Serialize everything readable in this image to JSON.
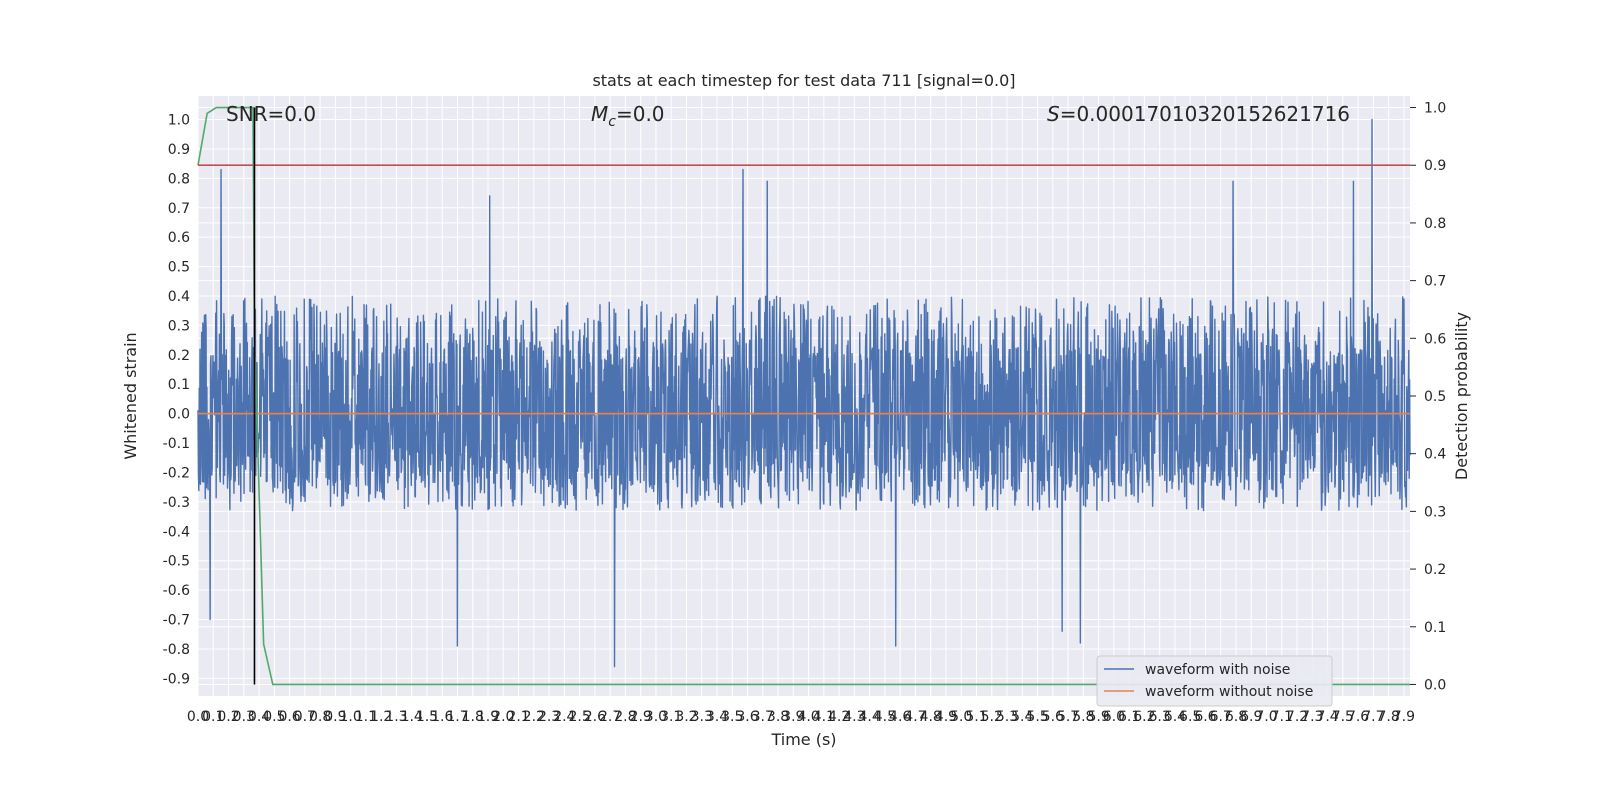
{
  "chart_data": {
    "type": "line",
    "title": "stats at each timestep for test data 711 [signal=0.0]",
    "xlabel": "Time (s)",
    "ylabel": "Whitened strain",
    "y2label": "Detection probability",
    "xlim": [
      0.0,
      7.94
    ],
    "ylim": [
      -0.96,
      1.08
    ],
    "y2lim": [
      -0.02,
      1.02
    ],
    "xticks": [
      "0.0",
      "0.1",
      "0.2",
      "0.3",
      "0.4",
      "0.5",
      "0.6",
      "0.7",
      "0.8",
      "0.9",
      "1.0",
      "1.1",
      "1.2",
      "1.3",
      "1.4",
      "1.5",
      "1.6",
      "1.7",
      "1.8",
      "1.9",
      "2.0",
      "2.1",
      "2.2",
      "2.3",
      "2.4",
      "2.5",
      "2.6",
      "2.7",
      "2.8",
      "2.9",
      "3.0",
      "3.1",
      "3.2",
      "3.3",
      "3.4",
      "3.5",
      "3.6",
      "3.7",
      "3.8",
      "3.9",
      "4.0",
      "4.1",
      "4.2",
      "4.3",
      "4.4",
      "4.5",
      "4.6",
      "4.7",
      "4.8",
      "4.9",
      "5.0",
      "5.1",
      "5.2",
      "5.3",
      "5.4",
      "5.5",
      "5.6",
      "5.7",
      "5.8",
      "5.9",
      "6.0",
      "6.1",
      "6.2",
      "6.3",
      "6.4",
      "6.5",
      "6.6",
      "6.7",
      "6.8",
      "6.9",
      "7.0",
      "7.1",
      "7.2",
      "7.3",
      "7.4",
      "7.5",
      "7.6",
      "7.7",
      "7.8",
      "7.9"
    ],
    "yticks": [
      "1.0",
      "0.9",
      "0.8",
      "0.7",
      "0.6",
      "0.5",
      "0.4",
      "0.3",
      "0.2",
      "0.1",
      "0.0",
      "-0.1",
      "-0.2",
      "-0.3",
      "-0.4",
      "-0.5",
      "-0.6",
      "-0.7",
      "-0.8",
      "-0.9"
    ],
    "y2ticks": [
      "1.0",
      "0.9",
      "0.8",
      "0.7",
      "0.6",
      "0.5",
      "0.4",
      "0.3",
      "0.2",
      "0.1",
      "0.0"
    ],
    "annotations": {
      "snr": "SNR=0.0",
      "mc_symbol": "M",
      "mc_sub": "c",
      "mc_value": "=0.0",
      "s_symbol": "S",
      "s_value": "=0.00017010320152621716"
    },
    "series": [
      {
        "name": "waveform with noise",
        "color": "#4c72b0",
        "x_range": [
          0.0,
          7.94
        ],
        "envelope_typical": [
          -0.33,
          0.4
        ],
        "peaks": [
          {
            "x": 0.15,
            "y": 0.83
          },
          {
            "x": 1.91,
            "y": 0.74
          },
          {
            "x": 3.57,
            "y": 0.83
          },
          {
            "x": 3.73,
            "y": 0.79
          },
          {
            "x": 6.78,
            "y": 0.79
          },
          {
            "x": 7.57,
            "y": 0.79
          },
          {
            "x": 7.69,
            "y": 1.0
          },
          {
            "x": 0.08,
            "y": -0.7
          },
          {
            "x": 1.7,
            "y": -0.79
          },
          {
            "x": 2.73,
            "y": -0.86
          },
          {
            "x": 4.57,
            "y": -0.79
          },
          {
            "x": 5.78,
            "y": -0.78
          },
          {
            "x": 5.66,
            "y": -0.74
          }
        ]
      },
      {
        "name": "waveform without noise",
        "color": "#dd8452",
        "x": [
          0.0,
          7.94
        ],
        "y": [
          0.0,
          0.0
        ]
      },
      {
        "color": "#55a868",
        "axis": "right",
        "x": [
          0.0,
          0.06,
          0.12,
          0.36,
          0.37,
          0.43,
          0.49,
          7.94
        ],
        "y": [
          0.9,
          0.99,
          1.0,
          1.0,
          0.6,
          0.07,
          0.0,
          0.0
        ]
      },
      {
        "color": "#c44e52",
        "axis": "right",
        "x": [
          0.0,
          7.94
        ],
        "y": [
          0.9,
          0.9
        ]
      }
    ],
    "vline": {
      "x": 0.37,
      "color": "#000000"
    },
    "grid": true,
    "legend_position": "bottom-right"
  }
}
